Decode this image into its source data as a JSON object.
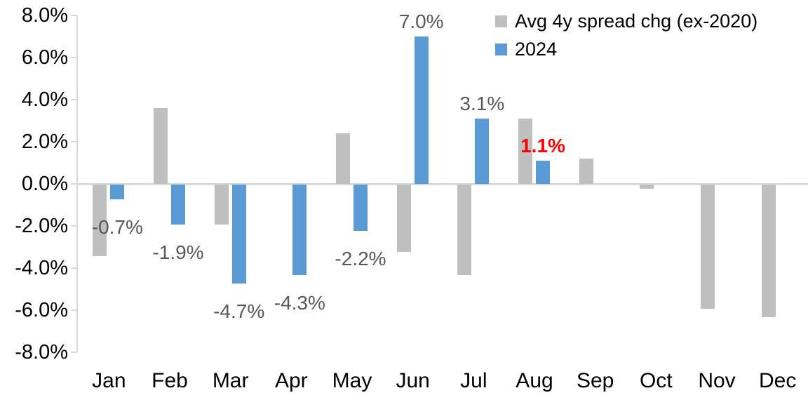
{
  "chart_data": {
    "type": "bar",
    "title": "",
    "categories": [
      "Jan",
      "Feb",
      "Mar",
      "Apr",
      "May",
      "Jun",
      "Jul",
      "Aug",
      "Sep",
      "Oct",
      "Nov",
      "Dec"
    ],
    "series": [
      {
        "name": "Avg 4y spread chg (ex-2020)",
        "color": "#BFBFBF",
        "values": [
          -3.4,
          3.6,
          -1.9,
          0.0,
          2.4,
          -3.2,
          -4.3,
          3.1,
          1.2,
          -0.2,
          -5.9,
          -6.3
        ]
      },
      {
        "name": "2024",
        "color": "#5B9BD5",
        "values": [
          -0.7,
          -1.9,
          -4.7,
          -4.3,
          -2.2,
          7.0,
          3.1,
          1.1,
          null,
          null,
          null,
          null
        ]
      }
    ],
    "y_axis": {
      "min": -8,
      "max": 8,
      "step": 2,
      "ticks": [
        {
          "value": 8,
          "label": "8.0%"
        },
        {
          "value": 6,
          "label": "6.0%"
        },
        {
          "value": 4,
          "label": "4.0%"
        },
        {
          "value": 2,
          "label": "2.0%"
        },
        {
          "value": 0,
          "label": "0.0%"
        },
        {
          "value": -2,
          "label": "-2.0%"
        },
        {
          "value": -4,
          "label": "-4.0%"
        },
        {
          "value": -6,
          "label": "-6.0%"
        },
        {
          "value": -8,
          "label": "-8.0%"
        }
      ]
    },
    "grid": "zero-line-only",
    "legend": {
      "position": "top-right",
      "items": [
        {
          "label": "Avg 4y spread chg (ex-2020)",
          "color": "#BFBFBF"
        },
        {
          "label": "2024",
          "color": "#5B9BD5"
        }
      ]
    },
    "data_labels": [
      {
        "category": "Jan",
        "series": "2024",
        "text": "-0.7%",
        "color": "#595959",
        "bold": false
      },
      {
        "category": "Feb",
        "series": "2024",
        "text": "-1.9%",
        "color": "#595959",
        "bold": false
      },
      {
        "category": "Mar",
        "series": "2024",
        "text": "-4.7%",
        "color": "#595959",
        "bold": false
      },
      {
        "category": "Apr",
        "series": "2024",
        "text": "-4.3%",
        "color": "#595959",
        "bold": false
      },
      {
        "category": "May",
        "series": "2024",
        "text": "-2.2%",
        "color": "#595959",
        "bold": false
      },
      {
        "category": "Jun",
        "series": "2024",
        "text": "7.0%",
        "color": "#595959",
        "bold": false
      },
      {
        "category": "Jul",
        "series": "2024",
        "text": "3.1%",
        "color": "#595959",
        "bold": false
      },
      {
        "category": "Aug",
        "series": "2024",
        "text": "1.1%",
        "color": "#FF0000",
        "bold": true
      }
    ]
  },
  "colors": {
    "axis_line": "#D9D9D9",
    "axis_text": "#000000",
    "label_default": "#595959",
    "label_highlight": "#FF0000",
    "background": "#FFFFFF"
  }
}
